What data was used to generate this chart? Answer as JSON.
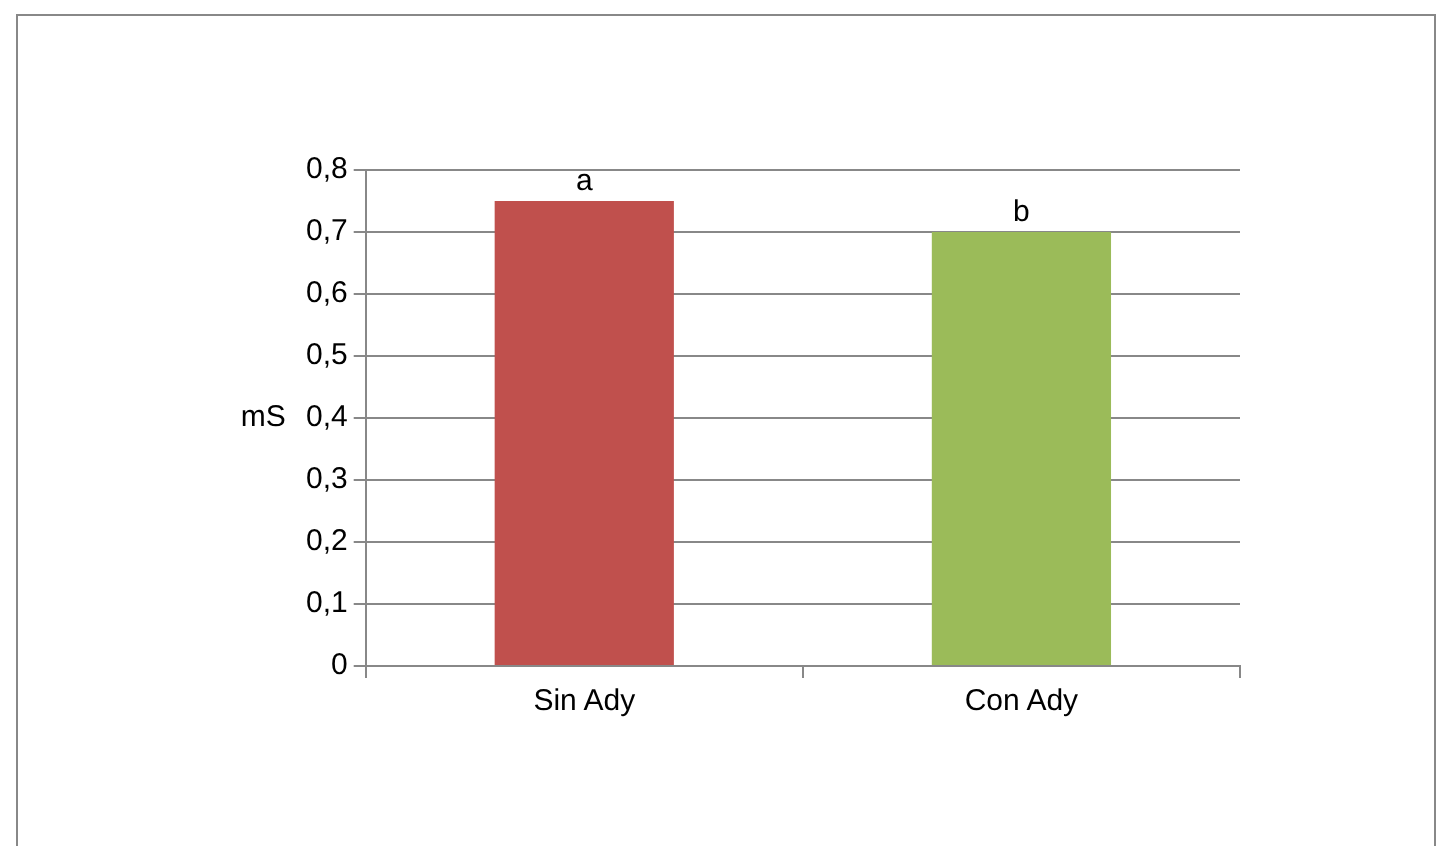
{
  "chart_data": {
    "type": "bar",
    "ylabel": "mS",
    "categories": [
      "Sin Ady",
      "Con Ady"
    ],
    "values": [
      0.75,
      0.7
    ],
    "colors": [
      "#c0504d",
      "#9bbb59"
    ],
    "ylim": [
      0,
      0.8
    ],
    "yticks": [
      {
        "value": 0,
        "label": "0"
      },
      {
        "value": 0.1,
        "label": "0,1"
      },
      {
        "value": 0.2,
        "label": "0,2"
      },
      {
        "value": 0.3,
        "label": "0,3"
      },
      {
        "value": 0.4,
        "label": "0,4"
      },
      {
        "value": 0.5,
        "label": "0,5"
      },
      {
        "value": 0.6,
        "label": "0,6"
      },
      {
        "value": 0.7,
        "label": "0,7"
      },
      {
        "value": 0.8,
        "label": "0,8"
      }
    ],
    "grid": "y",
    "legend": false,
    "annotations": [
      {
        "text": "a",
        "x": "Sin Ady",
        "y": 0.75
      },
      {
        "text": "b",
        "x": "Con Ady",
        "y": 0.7
      }
    ]
  }
}
